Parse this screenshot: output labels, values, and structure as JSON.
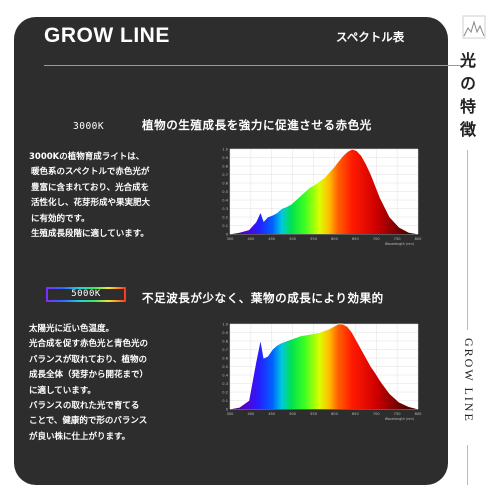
{
  "header": {
    "title": "GROW LINE",
    "subtitle": "スペクトル表"
  },
  "side": {
    "heading": "光の特徴",
    "brand": "GROW LINE"
  },
  "section1": {
    "temp": "3000K",
    "headline": "植物の生殖成長を強力に促進させる赤色光",
    "lines": [
      "3000Kの植物育成ライトは、",
      "暖色系のスペクトルで赤色光が",
      "豊富に含まれており、光合成を",
      "活性化し、花芽形成や果実肥大",
      "に有効的です。",
      "生殖成長段階に適しています。"
    ]
  },
  "section2": {
    "temp": "5000K",
    "headline": "不足波長が少なく、葉物の成長により効果的",
    "lines": [
      "太陽光に近い色温度。",
      "光合成を促す赤色光と青色光の",
      "バランスが取れており、植物の",
      "成長全体（発芽から開花まで）",
      "に適しています。",
      "バランスの取れた光で育てる",
      "ことで、健康的で形のバランス",
      "が良い株に仕上がります。"
    ]
  },
  "chart_data": [
    {
      "type": "area",
      "title": "",
      "xlabel": "Wavelength (nm)",
      "ylabel": "",
      "xlim": [
        380,
        780
      ],
      "ylim": [
        0,
        1.0
      ],
      "x_ticks": [
        "300",
        "400",
        "450",
        "500",
        "550",
        "600",
        "650",
        "700",
        "750",
        "800"
      ],
      "y_ticks": [
        "0",
        "0.1",
        "0.2",
        "0.3",
        "0.4",
        "0.5",
        "0.6",
        "0.7",
        "0.8",
        "0.9",
        "1.0"
      ],
      "x": [
        380,
        400,
        420,
        435,
        445,
        452,
        460,
        470,
        480,
        490,
        500,
        510,
        520,
        530,
        540,
        550,
        560,
        570,
        580,
        590,
        600,
        610,
        620,
        630,
        640,
        650,
        660,
        670,
        680,
        690,
        700,
        720,
        740,
        760,
        780
      ],
      "values": [
        0.0,
        0.02,
        0.05,
        0.14,
        0.26,
        0.15,
        0.2,
        0.22,
        0.25,
        0.3,
        0.32,
        0.35,
        0.4,
        0.45,
        0.5,
        0.55,
        0.58,
        0.62,
        0.66,
        0.72,
        0.78,
        0.85,
        0.92,
        0.97,
        1.0,
        0.98,
        0.92,
        0.82,
        0.7,
        0.56,
        0.42,
        0.2,
        0.08,
        0.02,
        0.0
      ],
      "grid": true
    },
    {
      "type": "area",
      "title": "",
      "xlabel": "Wavelength (nm)",
      "ylabel": "",
      "xlim": [
        380,
        780
      ],
      "ylim": [
        0,
        1.0
      ],
      "x_ticks": [
        "300",
        "400",
        "450",
        "500",
        "550",
        "600",
        "650",
        "700",
        "750",
        "800"
      ],
      "y_ticks": [
        "0",
        "0.1",
        "0.2",
        "0.3",
        "0.4",
        "0.5",
        "0.6",
        "0.7",
        "0.8",
        "0.9",
        "1.0"
      ],
      "x": [
        380,
        400,
        420,
        435,
        445,
        452,
        460,
        470,
        480,
        490,
        500,
        510,
        520,
        530,
        540,
        550,
        560,
        570,
        580,
        590,
        600,
        610,
        620,
        630,
        640,
        650,
        660,
        670,
        680,
        690,
        700,
        720,
        740,
        760,
        780
      ],
      "values": [
        0.0,
        0.02,
        0.1,
        0.55,
        0.82,
        0.6,
        0.62,
        0.7,
        0.75,
        0.78,
        0.8,
        0.82,
        0.84,
        0.86,
        0.87,
        0.88,
        0.89,
        0.9,
        0.92,
        0.94,
        0.97,
        1.0,
        1.0,
        0.97,
        0.9,
        0.8,
        0.7,
        0.6,
        0.5,
        0.42,
        0.33,
        0.18,
        0.08,
        0.03,
        0.0
      ],
      "grid": true
    }
  ],
  "colors": {
    "panel": "#2d2d2d",
    "text": "#ffffff"
  }
}
